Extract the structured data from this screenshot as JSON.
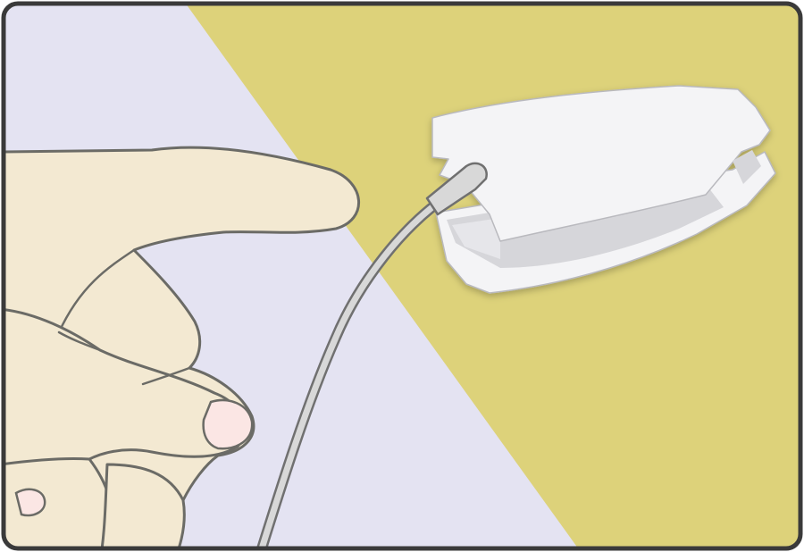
{
  "illustration": {
    "description_free": true,
    "colors": {
      "background_left": "#e4e3f2",
      "background_right": "#ddd27a",
      "frame_border": "#3a3a3a",
      "skin_fill": "#f3e9d2",
      "skin_outline": "#6b6b66",
      "fingernail": "#fbe6e4",
      "cable_fill": "#d8d8d8",
      "cable_outline": "#707070",
      "sensor_fill": "#f4f4f6",
      "sensor_shadow": "#d6d6da",
      "sensor_outline": "#b9b9be"
    },
    "icons": {
      "hand": "hand-icon",
      "pulse_oximeter_clip": "finger-clip-sensor-icon",
      "cable": "sensor-cable-icon"
    }
  }
}
